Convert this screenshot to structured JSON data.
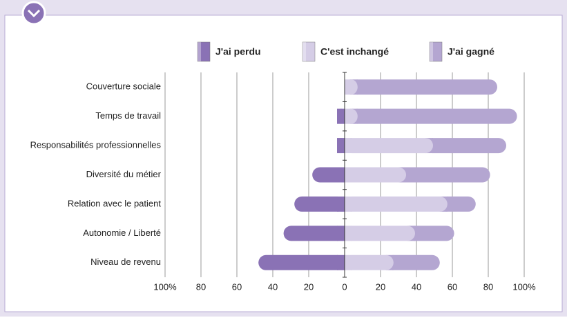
{
  "chart_data": {
    "type": "diverging_bar",
    "categories": [
      "Couverture sociale",
      "Temps de travail",
      "Responsabilités professionnelles",
      "Diversité du métier",
      "Relation avec le patient",
      "Autonomie / Liberté",
      "Niveau de revenu"
    ],
    "series": [
      {
        "name": "J'ai perdu",
        "color": "#8a72b5",
        "values": [
          0,
          -4,
          -4,
          -18,
          -28,
          -34,
          -48
        ]
      },
      {
        "name": "C'est inchangé",
        "color": "#d5cde6",
        "values": [
          3,
          3,
          45,
          30,
          53,
          35,
          23
        ]
      },
      {
        "name": "J'ai gagné",
        "color": "#b4a6d1",
        "values": [
          82,
          93,
          45,
          51,
          20,
          26,
          30
        ]
      }
    ],
    "xlim": [
      -100,
      100
    ],
    "xticks": [
      {
        "value": -100,
        "label": "100%"
      },
      {
        "value": -80,
        "label": "80"
      },
      {
        "value": -60,
        "label": "60"
      },
      {
        "value": -40,
        "label": "40"
      },
      {
        "value": -20,
        "label": "20"
      },
      0,
      20,
      40,
      60,
      80,
      {
        "value": 100,
        "label": "100%"
      }
    ],
    "grid": true
  }
}
